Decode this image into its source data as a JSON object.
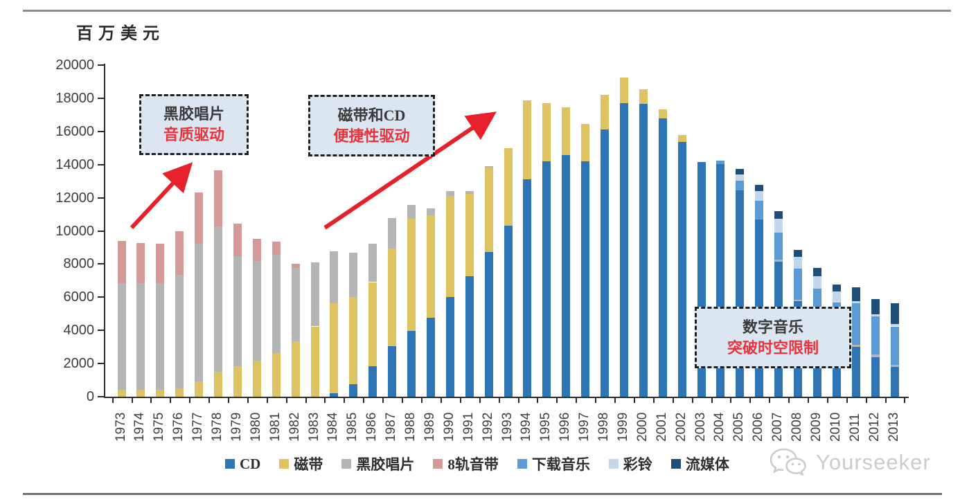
{
  "page": {
    "unit_label": "百万美元",
    "watermark_text": "Yourseeker"
  },
  "chart_data": {
    "type": "bar",
    "stacked": true,
    "title": "",
    "ylabel": "百万美元",
    "xlabel": "",
    "ylim": [
      0,
      20000
    ],
    "ytick_step": 2000,
    "grid": false,
    "legend_position": "bottom",
    "years": [
      1973,
      1974,
      1975,
      1976,
      1977,
      1978,
      1979,
      1980,
      1981,
      1982,
      1983,
      1984,
      1985,
      1986,
      1987,
      1988,
      1989,
      1990,
      1991,
      1992,
      1993,
      1994,
      1995,
      1996,
      1997,
      1998,
      1999,
      2000,
      2001,
      2002,
      2003,
      2004,
      2005,
      2006,
      2007,
      2008,
      2009,
      2010,
      2011,
      2012,
      2013
    ],
    "series": [
      {
        "name": "CD",
        "color": "#2e75b6",
        "values": [
          0,
          0,
          0,
          0,
          0,
          0,
          0,
          0,
          0,
          0,
          0,
          200,
          750,
          1850,
          3050,
          3950,
          4750,
          6030,
          7280,
          8710,
          10300,
          13100,
          14200,
          14580,
          14200,
          16130,
          17690,
          17650,
          16790,
          15350,
          14160,
          14040,
          12450,
          10680,
          8150,
          5750,
          4300,
          3280,
          3000,
          2390,
          1800
        ]
      },
      {
        "name": "磁带",
        "color": "#dfc262",
        "values": [
          400,
          400,
          430,
          500,
          910,
          1500,
          1850,
          2170,
          2640,
          3330,
          4240,
          5420,
          5280,
          5060,
          5880,
          6770,
          6180,
          6080,
          4960,
          5110,
          4690,
          4760,
          3490,
          2870,
          2250,
          2070,
          1550,
          870,
          550,
          420,
          0,
          0,
          0,
          0,
          0,
          0,
          0,
          0,
          0,
          0,
          0
        ]
      },
      {
        "name": "黑胶唱片",
        "color": "#b5b5b5",
        "values": [
          6440,
          6430,
          6430,
          6840,
          8320,
          8770,
          6630,
          6030,
          5930,
          4420,
          3860,
          3170,
          2650,
          2320,
          1850,
          860,
          440,
          300,
          170,
          100,
          0,
          0,
          0,
          0,
          0,
          0,
          0,
          0,
          0,
          0,
          0,
          0,
          0,
          0,
          100,
          100,
          100,
          100,
          120,
          160,
          140
        ]
      },
      {
        "name": "8轨音带",
        "color": "#d49a96",
        "values": [
          2560,
          2440,
          2370,
          2650,
          3110,
          3400,
          1980,
          1340,
          800,
          250,
          0,
          0,
          0,
          0,
          0,
          0,
          0,
          0,
          0,
          0,
          0,
          0,
          0,
          0,
          0,
          0,
          0,
          0,
          0,
          0,
          0,
          0,
          0,
          0,
          0,
          0,
          0,
          0,
          0,
          0,
          0
        ]
      },
      {
        "name": "下载音乐",
        "color": "#5b9bd5",
        "values": [
          0,
          0,
          0,
          0,
          0,
          0,
          0,
          0,
          0,
          0,
          0,
          0,
          0,
          0,
          0,
          0,
          0,
          0,
          0,
          0,
          0,
          0,
          0,
          0,
          0,
          0,
          0,
          0,
          0,
          0,
          0,
          200,
          580,
          1130,
          1650,
          1870,
          2100,
          2300,
          2500,
          2280,
          2300
        ]
      },
      {
        "name": "彩铃",
        "color": "#c3d6ea",
        "values": [
          0,
          0,
          0,
          0,
          0,
          0,
          0,
          0,
          0,
          0,
          0,
          0,
          0,
          0,
          0,
          0,
          0,
          0,
          0,
          0,
          0,
          0,
          0,
          0,
          0,
          0,
          0,
          0,
          0,
          0,
          0,
          0,
          390,
          600,
          850,
          720,
          780,
          660,
          150,
          140,
          140
        ]
      },
      {
        "name": "流媒体",
        "color": "#1f4e79",
        "values": [
          0,
          0,
          0,
          0,
          0,
          0,
          0,
          0,
          0,
          0,
          0,
          0,
          0,
          0,
          0,
          0,
          0,
          0,
          0,
          0,
          0,
          0,
          0,
          0,
          0,
          0,
          0,
          0,
          0,
          0,
          0,
          0,
          300,
          380,
          440,
          420,
          470,
          420,
          840,
          930,
          1240
        ]
      }
    ]
  },
  "annotations": [
    {
      "line1": "黑胶唱片",
      "line2": "音质驱动"
    },
    {
      "line1": "磁带和CD",
      "line2": "便捷性驱动"
    },
    {
      "line1": "数字音乐",
      "line2": "突破时空限制"
    }
  ],
  "arrow_color": "#e62129"
}
